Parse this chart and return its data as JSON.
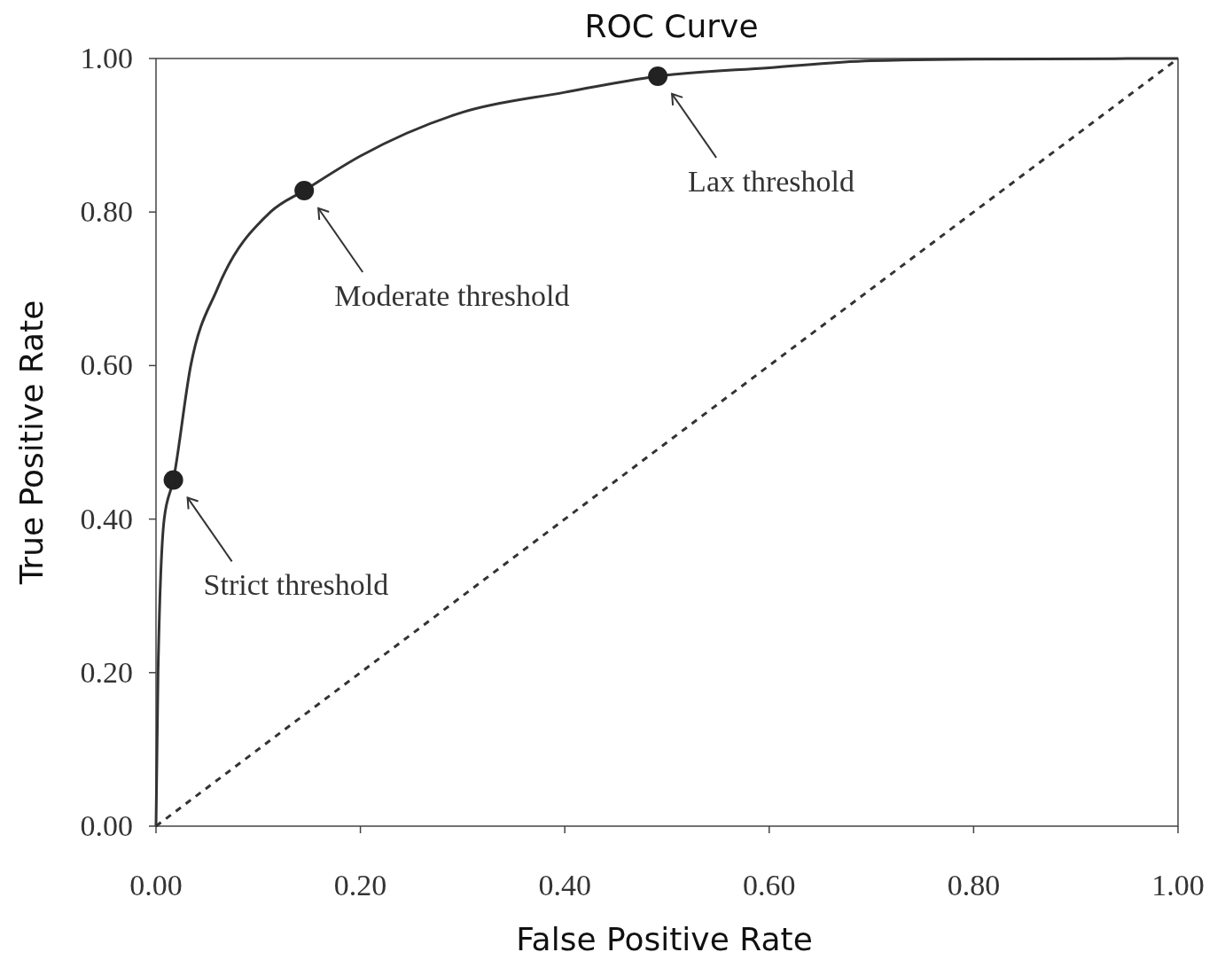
{
  "chart_data": {
    "type": "line",
    "title": "ROC Curve",
    "xlabel": "False Positive Rate",
    "ylabel": "True Positive Rate",
    "xlim": [
      0,
      1
    ],
    "ylim": [
      0,
      1
    ],
    "xticks": [
      {
        "value": 0,
        "label": "0.00"
      },
      {
        "value": 0.2,
        "label": "0.20"
      },
      {
        "value": 0.4,
        "label": "0.40"
      },
      {
        "value": 0.6,
        "label": "0.60"
      },
      {
        "value": 0.8,
        "label": "0.80"
      },
      {
        "value": 1,
        "label": "1.00"
      }
    ],
    "yticks": [
      {
        "value": 0,
        "label": "0.00"
      },
      {
        "value": 0.2,
        "label": "0.20"
      },
      {
        "value": 0.4,
        "label": "0.40"
      },
      {
        "value": 0.6,
        "label": "0.60"
      },
      {
        "value": 0.8,
        "label": "0.80"
      },
      {
        "value": 1,
        "label": "1.00"
      }
    ],
    "grid": false,
    "series": [
      {
        "color": "#333333",
        "line_style": "solid",
        "marker": "none",
        "x": [
          0,
          0.002,
          0.008,
          0.017,
          0.034,
          0.06,
          0.112,
          0.145,
          0.2,
          0.3,
          0.4,
          0.491,
          0.6,
          0.7,
          0.8,
          1
        ],
        "values": [
          0,
          0.2,
          0.4,
          0.451,
          0.6,
          0.7,
          0.8,
          0.828,
          0.873,
          0.93,
          0.956,
          0.977,
          0.988,
          0.997,
          0.999,
          1
        ]
      },
      {
        "color": "#333333",
        "line_style": "dashed",
        "marker": "none",
        "x": [
          0,
          1
        ],
        "values": [
          0,
          1
        ]
      },
      {
        "type": "scatter",
        "color": "#222222",
        "marker": "circle",
        "x": [
          0.017,
          0.145,
          0.491
        ],
        "values": [
          0.451,
          0.828,
          0.977
        ]
      }
    ],
    "annotations": [
      "Strict threshold",
      "Moderate threshold",
      "Lax threshold"
    ]
  }
}
